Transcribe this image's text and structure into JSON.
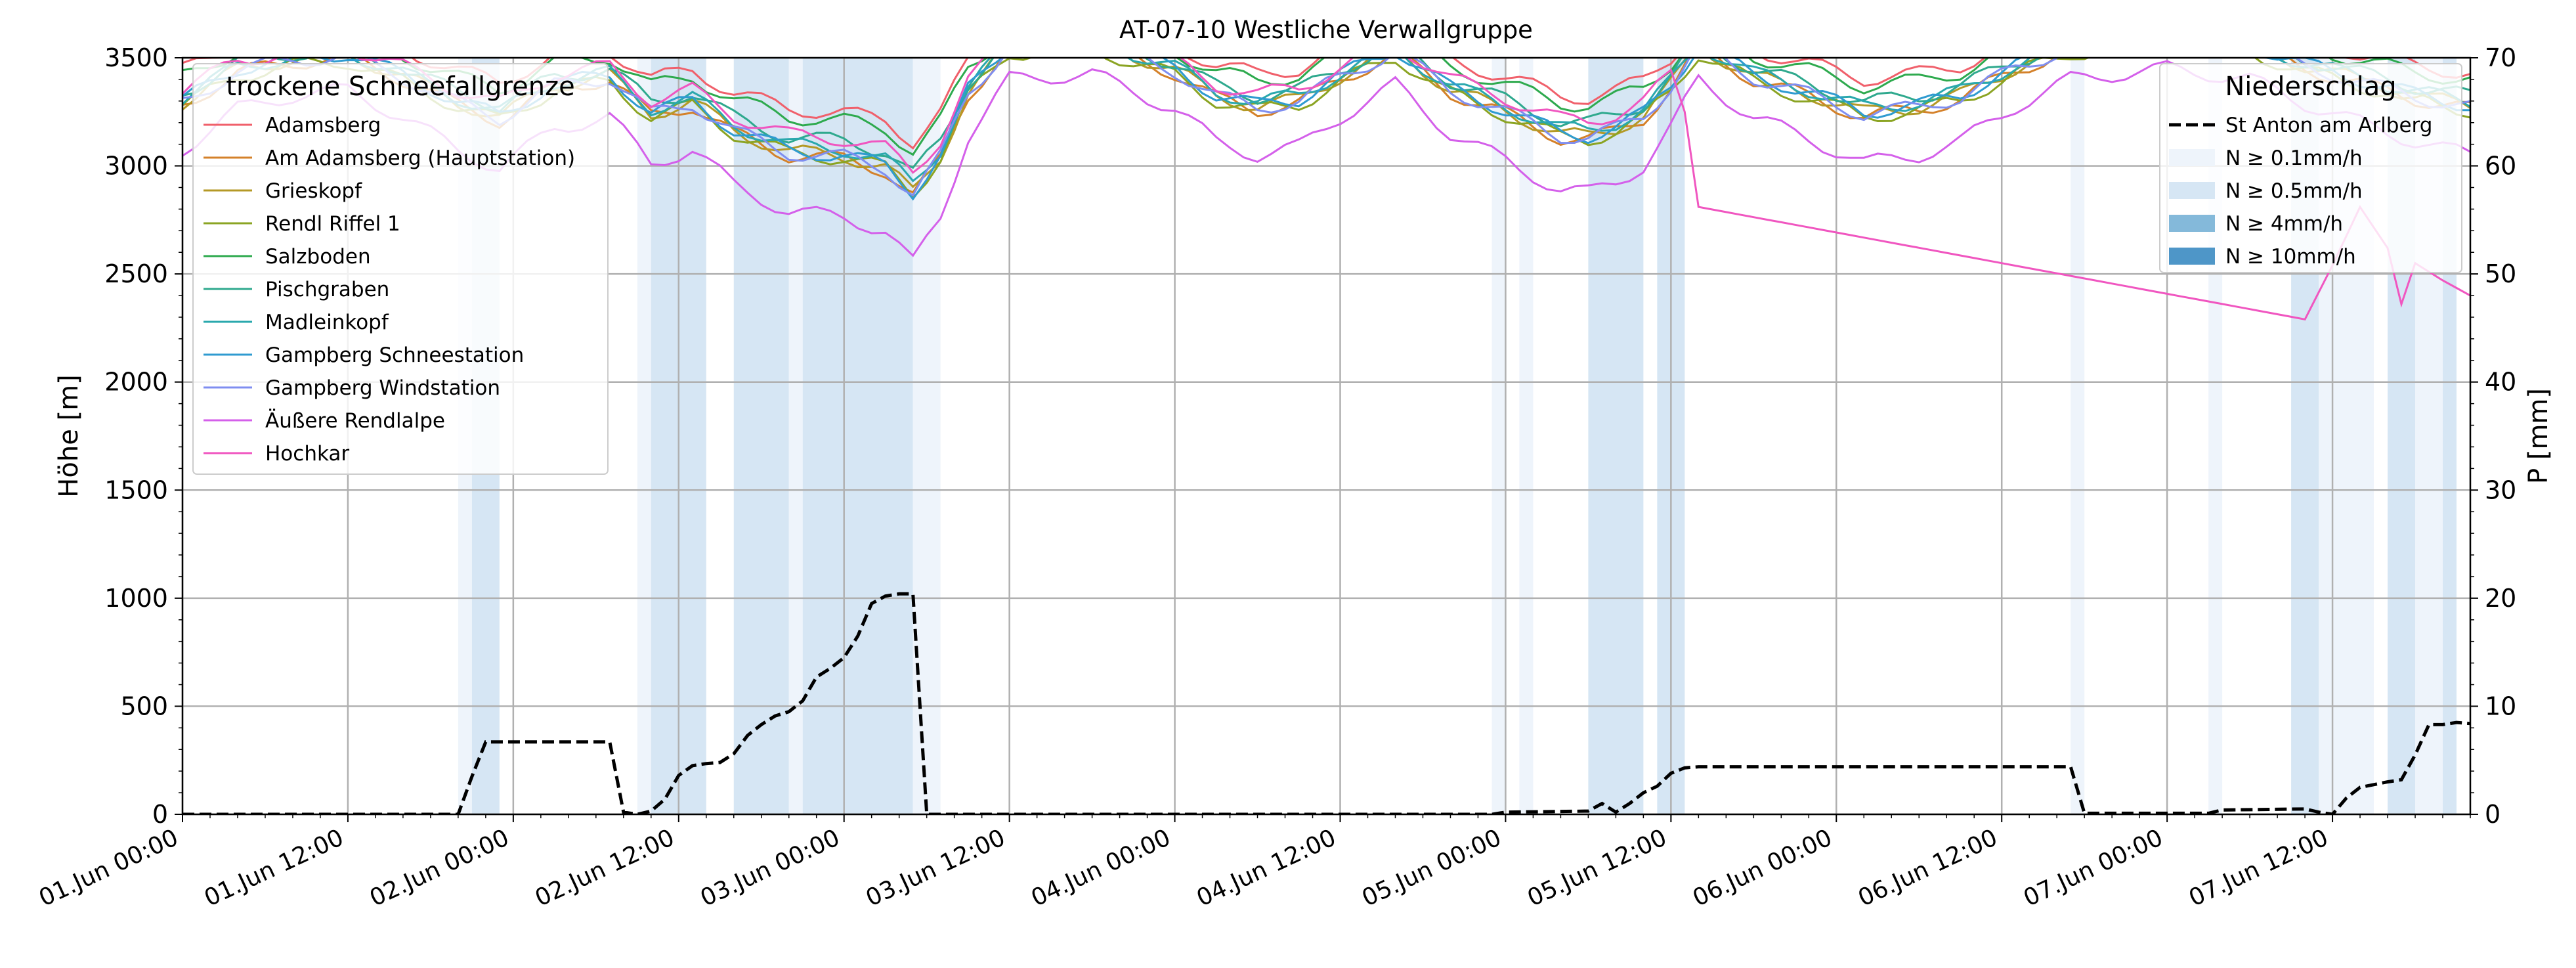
{
  "chart_data": {
    "type": "line",
    "title": "AT-07-10 Westliche Verwallgruppe",
    "ylabel": "Höhe [m]",
    "y2label": "P [mm]",
    "x_range": [
      "2024-06-01T00:00",
      "2024-06-07T22:00"
    ],
    "ylim": [
      0,
      3500
    ],
    "y2lim": [
      0,
      70
    ],
    "grid": true,
    "x_ticks": [
      {
        "t": "2024-06-01T00:00",
        "label": "01.Jun 00:00"
      },
      {
        "t": "2024-06-01T12:00",
        "label": "01.Jun 12:00"
      },
      {
        "t": "2024-06-02T00:00",
        "label": "02.Jun 00:00"
      },
      {
        "t": "2024-06-02T12:00",
        "label": "02.Jun 12:00"
      },
      {
        "t": "2024-06-03T00:00",
        "label": "03.Jun 00:00"
      },
      {
        "t": "2024-06-03T12:00",
        "label": "03.Jun 12:00"
      },
      {
        "t": "2024-06-04T00:00",
        "label": "04.Jun 00:00"
      },
      {
        "t": "2024-06-04T12:00",
        "label": "04.Jun 12:00"
      },
      {
        "t": "2024-06-05T00:00",
        "label": "05.Jun 00:00"
      },
      {
        "t": "2024-06-05T12:00",
        "label": "05.Jun 12:00"
      },
      {
        "t": "2024-06-06T00:00",
        "label": "06.Jun 00:00"
      },
      {
        "t": "2024-06-06T12:00",
        "label": "06.Jun 12:00"
      },
      {
        "t": "2024-06-07T00:00",
        "label": "07.Jun 00:00"
      },
      {
        "t": "2024-06-07T12:00",
        "label": "07.Jun 12:00"
      }
    ],
    "y_ticks": [
      0,
      500,
      1000,
      1500,
      2000,
      2500,
      3000,
      3500
    ],
    "y2_ticks": [
      0,
      10,
      20,
      30,
      40,
      50,
      60,
      70
    ],
    "legend_snowline": {
      "title": "trockene Schneefallgrenze",
      "placement": "upper-left"
    },
    "legend_precip": {
      "title": "Niederschlag",
      "placement": "upper-right",
      "line_label": "St Anton am Arlberg",
      "classes": [
        {
          "label": "N ≥ 0.1mm/h",
          "color": "#eef4fb"
        },
        {
          "label": "N ≥ 0.5mm/h",
          "color": "#d6e6f4"
        },
        {
          "label": "N ≥ 4mm/h",
          "color": "#84b9da"
        },
        {
          "label": "N ≥ 10mm/h",
          "color": "#4e96c8"
        }
      ]
    },
    "precip_intervals": [
      {
        "start": "2024-06-01T20:00",
        "end": "2024-06-01T21:00",
        "level": 1
      },
      {
        "start": "2024-06-01T21:00",
        "end": "2024-06-01T23:00",
        "level": 2
      },
      {
        "start": "2024-06-02T09:00",
        "end": "2024-06-02T10:00",
        "level": 1
      },
      {
        "start": "2024-06-02T10:00",
        "end": "2024-06-02T14:00",
        "level": 2
      },
      {
        "start": "2024-06-02T16:00",
        "end": "2024-06-02T20:00",
        "level": 2
      },
      {
        "start": "2024-06-02T20:00",
        "end": "2024-06-02T21:00",
        "level": 1
      },
      {
        "start": "2024-06-02T21:00",
        "end": "2024-06-03T05:00",
        "level": 2
      },
      {
        "start": "2024-06-03T05:00",
        "end": "2024-06-03T07:00",
        "level": 1
      },
      {
        "start": "2024-06-04T23:00",
        "end": "2024-06-05T00:00",
        "level": 1
      },
      {
        "start": "2024-06-05T01:00",
        "end": "2024-06-05T02:00",
        "level": 1
      },
      {
        "start": "2024-06-05T06:00",
        "end": "2024-06-05T10:00",
        "level": 2
      },
      {
        "start": "2024-06-05T11:00",
        "end": "2024-06-05T13:00",
        "level": 2
      },
      {
        "start": "2024-06-06T17:00",
        "end": "2024-06-06T18:00",
        "level": 1
      },
      {
        "start": "2024-06-07T03:00",
        "end": "2024-06-07T04:00",
        "level": 1
      },
      {
        "start": "2024-06-07T09:00",
        "end": "2024-06-07T11:00",
        "level": 2
      },
      {
        "start": "2024-06-07T11:00",
        "end": "2024-06-07T13:00",
        "level": 1
      },
      {
        "start": "2024-06-07T13:00",
        "end": "2024-06-07T15:00",
        "level": 1
      },
      {
        "start": "2024-06-07T16:00",
        "end": "2024-06-07T18:00",
        "level": 2
      },
      {
        "start": "2024-06-07T18:00",
        "end": "2024-06-07T20:00",
        "level": 1
      },
      {
        "start": "2024-06-07T20:00",
        "end": "2024-06-07T21:00",
        "level": 2
      }
    ],
    "precip_cumulative": {
      "name": "St Anton am Arlberg",
      "color": "#000000",
      "points": [
        [
          "2024-06-01T00:00",
          0
        ],
        [
          "2024-06-01T20:00",
          0
        ],
        [
          "2024-06-01T21:00",
          3.5
        ],
        [
          "2024-06-01T22:00",
          6.7
        ],
        [
          "2024-06-02T07:00",
          6.7
        ],
        [
          "2024-06-02T08:00",
          0.2
        ],
        [
          "2024-06-02T09:00",
          0
        ],
        [
          "2024-06-02T10:00",
          0.3
        ],
        [
          "2024-06-02T11:00",
          1.4
        ],
        [
          "2024-06-02T12:00",
          3.6
        ],
        [
          "2024-06-02T13:00",
          4.5
        ],
        [
          "2024-06-02T14:00",
          4.7
        ],
        [
          "2024-06-02T15:00",
          4.8
        ],
        [
          "2024-06-02T16:00",
          5.6
        ],
        [
          "2024-06-02T17:00",
          7.3
        ],
        [
          "2024-06-02T18:00",
          8.3
        ],
        [
          "2024-06-02T19:00",
          9.1
        ],
        [
          "2024-06-02T20:00",
          9.5
        ],
        [
          "2024-06-02T21:00",
          10.5
        ],
        [
          "2024-06-02T22:00",
          12.7
        ],
        [
          "2024-06-02T23:00",
          13.5
        ],
        [
          "2024-06-03T00:00",
          14.5
        ],
        [
          "2024-06-03T01:00",
          16.5
        ],
        [
          "2024-06-03T02:00",
          19.5
        ],
        [
          "2024-06-03T03:00",
          20.2
        ],
        [
          "2024-06-03T04:00",
          20.4
        ],
        [
          "2024-06-03T05:00",
          20.4
        ],
        [
          "2024-06-03T06:00",
          0
        ],
        [
          "2024-06-04T23:00",
          0
        ],
        [
          "2024-06-05T00:00",
          0.2
        ],
        [
          "2024-06-05T06:00",
          0.3
        ],
        [
          "2024-06-05T07:00",
          1
        ],
        [
          "2024-06-05T08:00",
          0.2
        ],
        [
          "2024-06-05T09:00",
          1
        ],
        [
          "2024-06-05T10:00",
          2
        ],
        [
          "2024-06-05T11:00",
          2.6
        ],
        [
          "2024-06-05T12:00",
          3.8
        ],
        [
          "2024-06-05T13:00",
          4.3
        ],
        [
          "2024-06-05T14:00",
          4.4
        ],
        [
          "2024-06-06T17:00",
          4.4
        ],
        [
          "2024-06-06T18:00",
          0.1
        ],
        [
          "2024-06-07T03:00",
          0.1
        ],
        [
          "2024-06-07T04:00",
          0.4
        ],
        [
          "2024-06-07T10:00",
          0.5
        ],
        [
          "2024-06-07T11:00",
          0.2
        ],
        [
          "2024-06-07T12:00",
          0
        ],
        [
          "2024-06-07T13:00",
          1.5
        ],
        [
          "2024-06-07T14:00",
          2.5
        ],
        [
          "2024-06-07T16:00",
          3
        ],
        [
          "2024-06-07T17:00",
          3.2
        ],
        [
          "2024-06-07T18:00",
          5.5
        ],
        [
          "2024-06-07T19:00",
          8.3
        ],
        [
          "2024-06-07T20:00",
          8.3
        ],
        [
          "2024-06-07T21:00",
          8.5
        ],
        [
          "2024-06-07T22:00",
          8.4
        ]
      ]
    },
    "series": [
      {
        "name": "Adamsberg",
        "color": "#f0606b",
        "offset": 120,
        "amp": 0.78
      },
      {
        "name": "Am Adamsberg (Hauptstation)",
        "color": "#d4812a",
        "offset": -20,
        "amp": 1.0
      },
      {
        "name": "Grieskopf",
        "color": "#b49926",
        "offset": -5,
        "amp": 1.0
      },
      {
        "name": "Rendl Riffel 1",
        "color": "#8ba423",
        "offset": -30,
        "amp": 0.95
      },
      {
        "name": "Salzboden",
        "color": "#2eaa4e",
        "offset": 90,
        "amp": 0.8
      },
      {
        "name": "Pischgraben",
        "color": "#2fa98e",
        "offset": 30,
        "amp": 0.9
      },
      {
        "name": "Madleinkopf",
        "color": "#2aa8ad",
        "offset": 10,
        "amp": 0.95
      },
      {
        "name": "Gampberg Schneestation",
        "color": "#2f9bd0",
        "offset": 0,
        "amp": 1.0
      },
      {
        "name": "Gampberg Windstation",
        "color": "#7f8ef0",
        "offset": -10,
        "amp": 1.0
      },
      {
        "name": "Äußere Rendlalpe",
        "color": "#d460ea",
        "offset": -200,
        "amp": 1.25
      },
      {
        "name": "Hochkar",
        "color": "#f056c0",
        "offset": 40,
        "amp": 0.9
      }
    ],
    "snowline_base": [
      [
        "2024-06-01T00:00",
        3300
      ],
      [
        "2024-06-01T04:00",
        3450
      ],
      [
        "2024-06-01T08:00",
        3500
      ],
      [
        "2024-06-01T12:00",
        3520
      ],
      [
        "2024-06-01T16:00",
        3420
      ],
      [
        "2024-06-01T20:00",
        3300
      ],
      [
        "2024-06-01T23:00",
        3230
      ],
      [
        "2024-06-02T03:00",
        3380
      ],
      [
        "2024-06-02T07:00",
        3420
      ],
      [
        "2024-06-02T10:00",
        3250
      ],
      [
        "2024-06-02T13:00",
        3300
      ],
      [
        "2024-06-02T16:00",
        3170
      ],
      [
        "2024-06-02T20:00",
        3070
      ],
      [
        "2024-06-03T00:00",
        3050
      ],
      [
        "2024-06-03T03:00",
        3000
      ],
      [
        "2024-06-03T05:00",
        2880
      ],
      [
        "2024-06-03T07:00",
        3050
      ],
      [
        "2024-06-03T09:00",
        3350
      ],
      [
        "2024-06-03T12:00",
        3560
      ],
      [
        "2024-06-03T18:00",
        3580
      ],
      [
        "2024-06-04T00:00",
        3450
      ],
      [
        "2024-06-04T03:00",
        3330
      ],
      [
        "2024-06-04T06:00",
        3280
      ],
      [
        "2024-06-04T09:00",
        3310
      ],
      [
        "2024-06-04T12:00",
        3420
      ],
      [
        "2024-06-04T16:00",
        3540
      ],
      [
        "2024-06-04T20:00",
        3360
      ],
      [
        "2024-06-05T00:00",
        3260
      ],
      [
        "2024-06-05T04:00",
        3150
      ],
      [
        "2024-06-05T06:00",
        3140
      ],
      [
        "2024-06-05T08:00",
        3180
      ],
      [
        "2024-06-05T10:00",
        3240
      ],
      [
        "2024-06-05T12:00",
        3380
      ],
      [
        "2024-06-05T14:00",
        3560
      ],
      [
        "2024-06-05T18:00",
        3420
      ],
      [
        "2024-06-05T22:00",
        3340
      ],
      [
        "2024-06-06T02:00",
        3250
      ],
      [
        "2024-06-06T06:00",
        3280
      ],
      [
        "2024-06-06T09:00",
        3330
      ],
      [
        "2024-06-06T13:00",
        3460
      ],
      [
        "2024-06-06T17:00",
        3560
      ],
      [
        "2024-06-07T00:00",
        3600
      ],
      [
        "2024-06-07T06:00",
        3560
      ],
      [
        "2024-06-07T10:00",
        3470
      ],
      [
        "2024-06-07T14:00",
        3400
      ],
      [
        "2024-06-07T18:00",
        3330
      ],
      [
        "2024-06-07T22:00",
        3280
      ]
    ],
    "hochkar_override": [
      [
        "2024-06-05T13:00",
        3250
      ],
      [
        "2024-06-05T14:00",
        2810
      ],
      [
        "2024-06-07T10:00",
        2290
      ],
      [
        "2024-06-07T12:00",
        2540
      ],
      [
        "2024-06-07T14:00",
        2810
      ],
      [
        "2024-06-07T16:00",
        2620
      ],
      [
        "2024-06-07T17:00",
        2360
      ],
      [
        "2024-06-07T18:00",
        2550
      ],
      [
        "2024-06-07T20:00",
        2470
      ],
      [
        "2024-06-07T22:00",
        2400
      ]
    ]
  }
}
